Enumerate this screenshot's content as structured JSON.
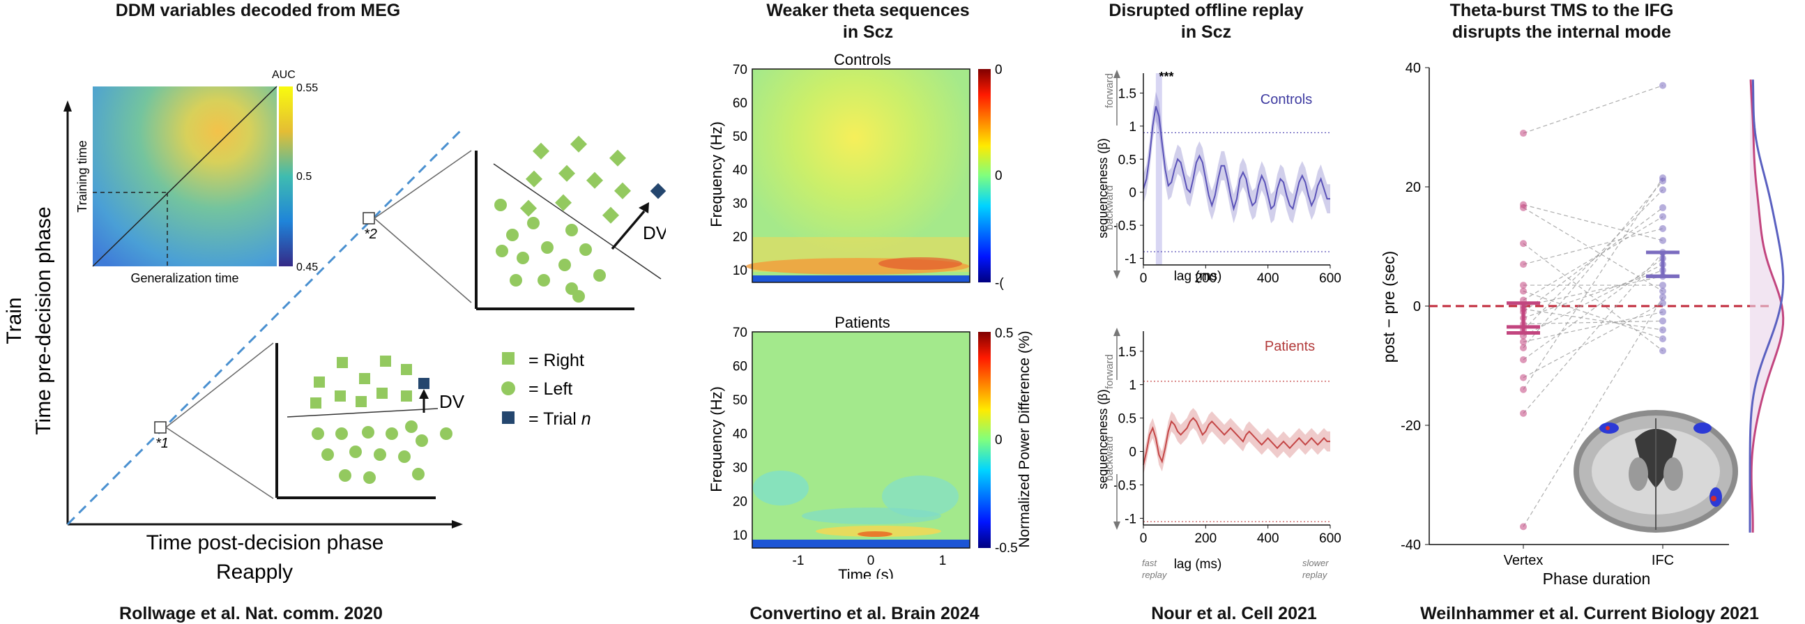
{
  "panels": [
    {
      "title": "DDM variables decoded from MEG",
      "citation": "Rollwage et al. Nat. comm. 2020"
    },
    {
      "title": "Weaker theta sequences\nin Scz",
      "citation": "Convertino et al. Brain 2024"
    },
    {
      "title": "Disrupted offline replay\nin Scz",
      "citation": "Nour et al. Cell 2021"
    },
    {
      "title": "Theta-burst TMS to the IFG\ndisrupts the internal mode",
      "citation": "Weilnhammer et al. Current Biology 2021"
    }
  ],
  "ddm": {
    "heatmap": {
      "ylabel": "Training time",
      "xlabel": "Generalization time",
      "cbar_title": "AUC",
      "cbar_ticks": [
        "0.55",
        "0.5",
        "0.45"
      ]
    },
    "axis_y_main": "Train",
    "axis_y_sub": "Time pre-decision phase",
    "axis_x_main": "Time post-decision phase",
    "axis_x_sub": "Reapply",
    "marker1": "*1",
    "marker2": "*2",
    "dv_label": "DV",
    "legend": [
      {
        "shape": "square",
        "label": "= Right",
        "color": "#93c95f"
      },
      {
        "shape": "circle",
        "label": "= Left",
        "color": "#93c95f"
      },
      {
        "shape": "square",
        "label": "= Trial ",
        "italic": "n",
        "color": "#24466e"
      }
    ]
  },
  "tf": {
    "controls_title": "Controls",
    "patients_title": "Patients",
    "ylabel": "Frequency (Hz)",
    "xlabel": "Time (s)",
    "yticks": [
      "70",
      "60",
      "50",
      "40",
      "30",
      "20",
      "10"
    ],
    "xticks": [
      "-1",
      "0",
      "1"
    ],
    "cbar_label": "Normalized Power Difference (%)",
    "controls_cbar_ticks": [
      "0",
      "0",
      "-("
    ],
    "patients_cbar_ticks": [
      "0.5",
      "0",
      "-0.5"
    ]
  },
  "chart_data": [
    {
      "type": "line",
      "title": "Controls",
      "xlabel": "lag (ms)",
      "ylabel": "sequenceness (β)",
      "ylabel_forward": "forward",
      "ylabel_backward": "backward",
      "xlim": [
        0,
        600
      ],
      "ylim": [
        -1.1,
        1.8
      ],
      "xticks": [
        "0",
        "200",
        "400",
        "600"
      ],
      "yticks": [
        "1.5",
        "1",
        "0.5",
        "0",
        "-0.5",
        "-1"
      ],
      "threshold": [
        0.9,
        -0.9
      ],
      "significance": "***",
      "series": [
        {
          "name": "Controls",
          "color": "#5a52b8",
          "x": [
            0,
            10,
            20,
            30,
            40,
            50,
            60,
            70,
            80,
            90,
            100,
            110,
            120,
            130,
            140,
            150,
            160,
            170,
            180,
            190,
            200,
            210,
            220,
            230,
            240,
            250,
            260,
            270,
            280,
            290,
            300,
            310,
            320,
            330,
            340,
            350,
            360,
            370,
            380,
            390,
            400,
            410,
            420,
            430,
            440,
            450,
            460,
            470,
            480,
            490,
            500,
            510,
            520,
            530,
            540,
            550,
            560,
            570,
            580,
            590,
            600
          ],
          "y": [
            0.05,
            0.2,
            0.55,
            1.0,
            1.3,
            1.15,
            0.75,
            0.35,
            0.1,
            0.15,
            0.35,
            0.5,
            0.45,
            0.25,
            0.05,
            0.0,
            0.2,
            0.45,
            0.55,
            0.45,
            0.2,
            -0.05,
            -0.2,
            -0.05,
            0.2,
            0.4,
            0.4,
            0.2,
            -0.05,
            -0.25,
            -0.1,
            0.2,
            0.3,
            0.2,
            -0.05,
            -0.2,
            -0.15,
            0.1,
            0.25,
            0.15,
            -0.05,
            -0.25,
            -0.2,
            0.05,
            0.2,
            0.15,
            -0.05,
            -0.2,
            -0.25,
            -0.05,
            0.15,
            0.25,
            0.15,
            -0.05,
            -0.2,
            -0.1,
            0.1,
            0.2,
            0.05,
            -0.1,
            -0.1
          ]
        }
      ]
    },
    {
      "type": "line",
      "title": "Patients",
      "xlabel": "lag (ms)",
      "ylabel": "sequenceness (β)",
      "ylabel_forward": "forward",
      "ylabel_backward": "backward",
      "xlim": [
        0,
        600
      ],
      "ylim": [
        -1.1,
        1.8
      ],
      "xticks": [
        "0",
        "200",
        "400",
        "600"
      ],
      "yticks": [
        "1.5",
        "1",
        "0.5",
        "0",
        "-0.5",
        "-1"
      ],
      "threshold": [
        1.05,
        -1.05
      ],
      "fast_label": "fast\nreplay",
      "slow_label": "slower\nreplay",
      "series": [
        {
          "name": "Patients",
          "color": "#c44545",
          "x": [
            0,
            10,
            20,
            30,
            40,
            50,
            60,
            70,
            80,
            90,
            100,
            110,
            120,
            130,
            140,
            150,
            160,
            170,
            180,
            190,
            200,
            210,
            220,
            230,
            240,
            250,
            260,
            270,
            280,
            290,
            300,
            310,
            320,
            330,
            340,
            350,
            360,
            370,
            380,
            390,
            400,
            410,
            420,
            430,
            440,
            450,
            460,
            470,
            480,
            490,
            500,
            510,
            520,
            530,
            540,
            550,
            560,
            570,
            580,
            590,
            600
          ],
          "y": [
            -0.2,
            0.0,
            0.25,
            0.35,
            0.2,
            -0.05,
            -0.15,
            0.05,
            0.3,
            0.45,
            0.4,
            0.3,
            0.25,
            0.3,
            0.35,
            0.45,
            0.5,
            0.45,
            0.35,
            0.25,
            0.3,
            0.4,
            0.45,
            0.4,
            0.35,
            0.3,
            0.25,
            0.3,
            0.35,
            0.3,
            0.25,
            0.2,
            0.15,
            0.25,
            0.3,
            0.25,
            0.2,
            0.15,
            0.1,
            0.15,
            0.2,
            0.15,
            0.1,
            0.05,
            0.1,
            0.15,
            0.1,
            0.05,
            0.1,
            0.15,
            0.2,
            0.15,
            0.1,
            0.15,
            0.2,
            0.15,
            0.1,
            0.15,
            0.2,
            0.15,
            0.15
          ]
        }
      ]
    },
    {
      "type": "scatter",
      "title": "",
      "xlabel": "Phase duration",
      "ylabel": "post − pre (sec)",
      "categories": [
        "Vertex",
        "IFC"
      ],
      "ylim": [
        -40,
        40
      ],
      "yticks": [
        "40",
        "20",
        "0",
        "-20",
        "-40"
      ],
      "series": [
        {
          "name": "Vertex",
          "color": "#c2457f",
          "values": [
            29,
            17,
            16.5,
            10.5,
            7,
            3.5,
            2.5,
            1,
            0,
            -0.5,
            -1,
            -2,
            -3,
            -4,
            -5,
            -6,
            -7,
            -9,
            -12,
            -14,
            -18,
            -37
          ],
          "mean": -3.5,
          "se_bar": [
            -4.5,
            0.5
          ]
        },
        {
          "name": "IFC",
          "color": "#7a6bbf",
          "values": [
            37,
            21.5,
            21,
            19.5,
            16.5,
            15,
            13,
            11,
            9,
            8,
            7,
            6,
            5,
            3.5,
            2.5,
            1.5,
            0.5,
            -1,
            -2.5,
            -4,
            -5.5,
            -7.5
          ],
          "mean": 5,
          "se_bar": [
            5,
            9
          ]
        }
      ]
    }
  ]
}
